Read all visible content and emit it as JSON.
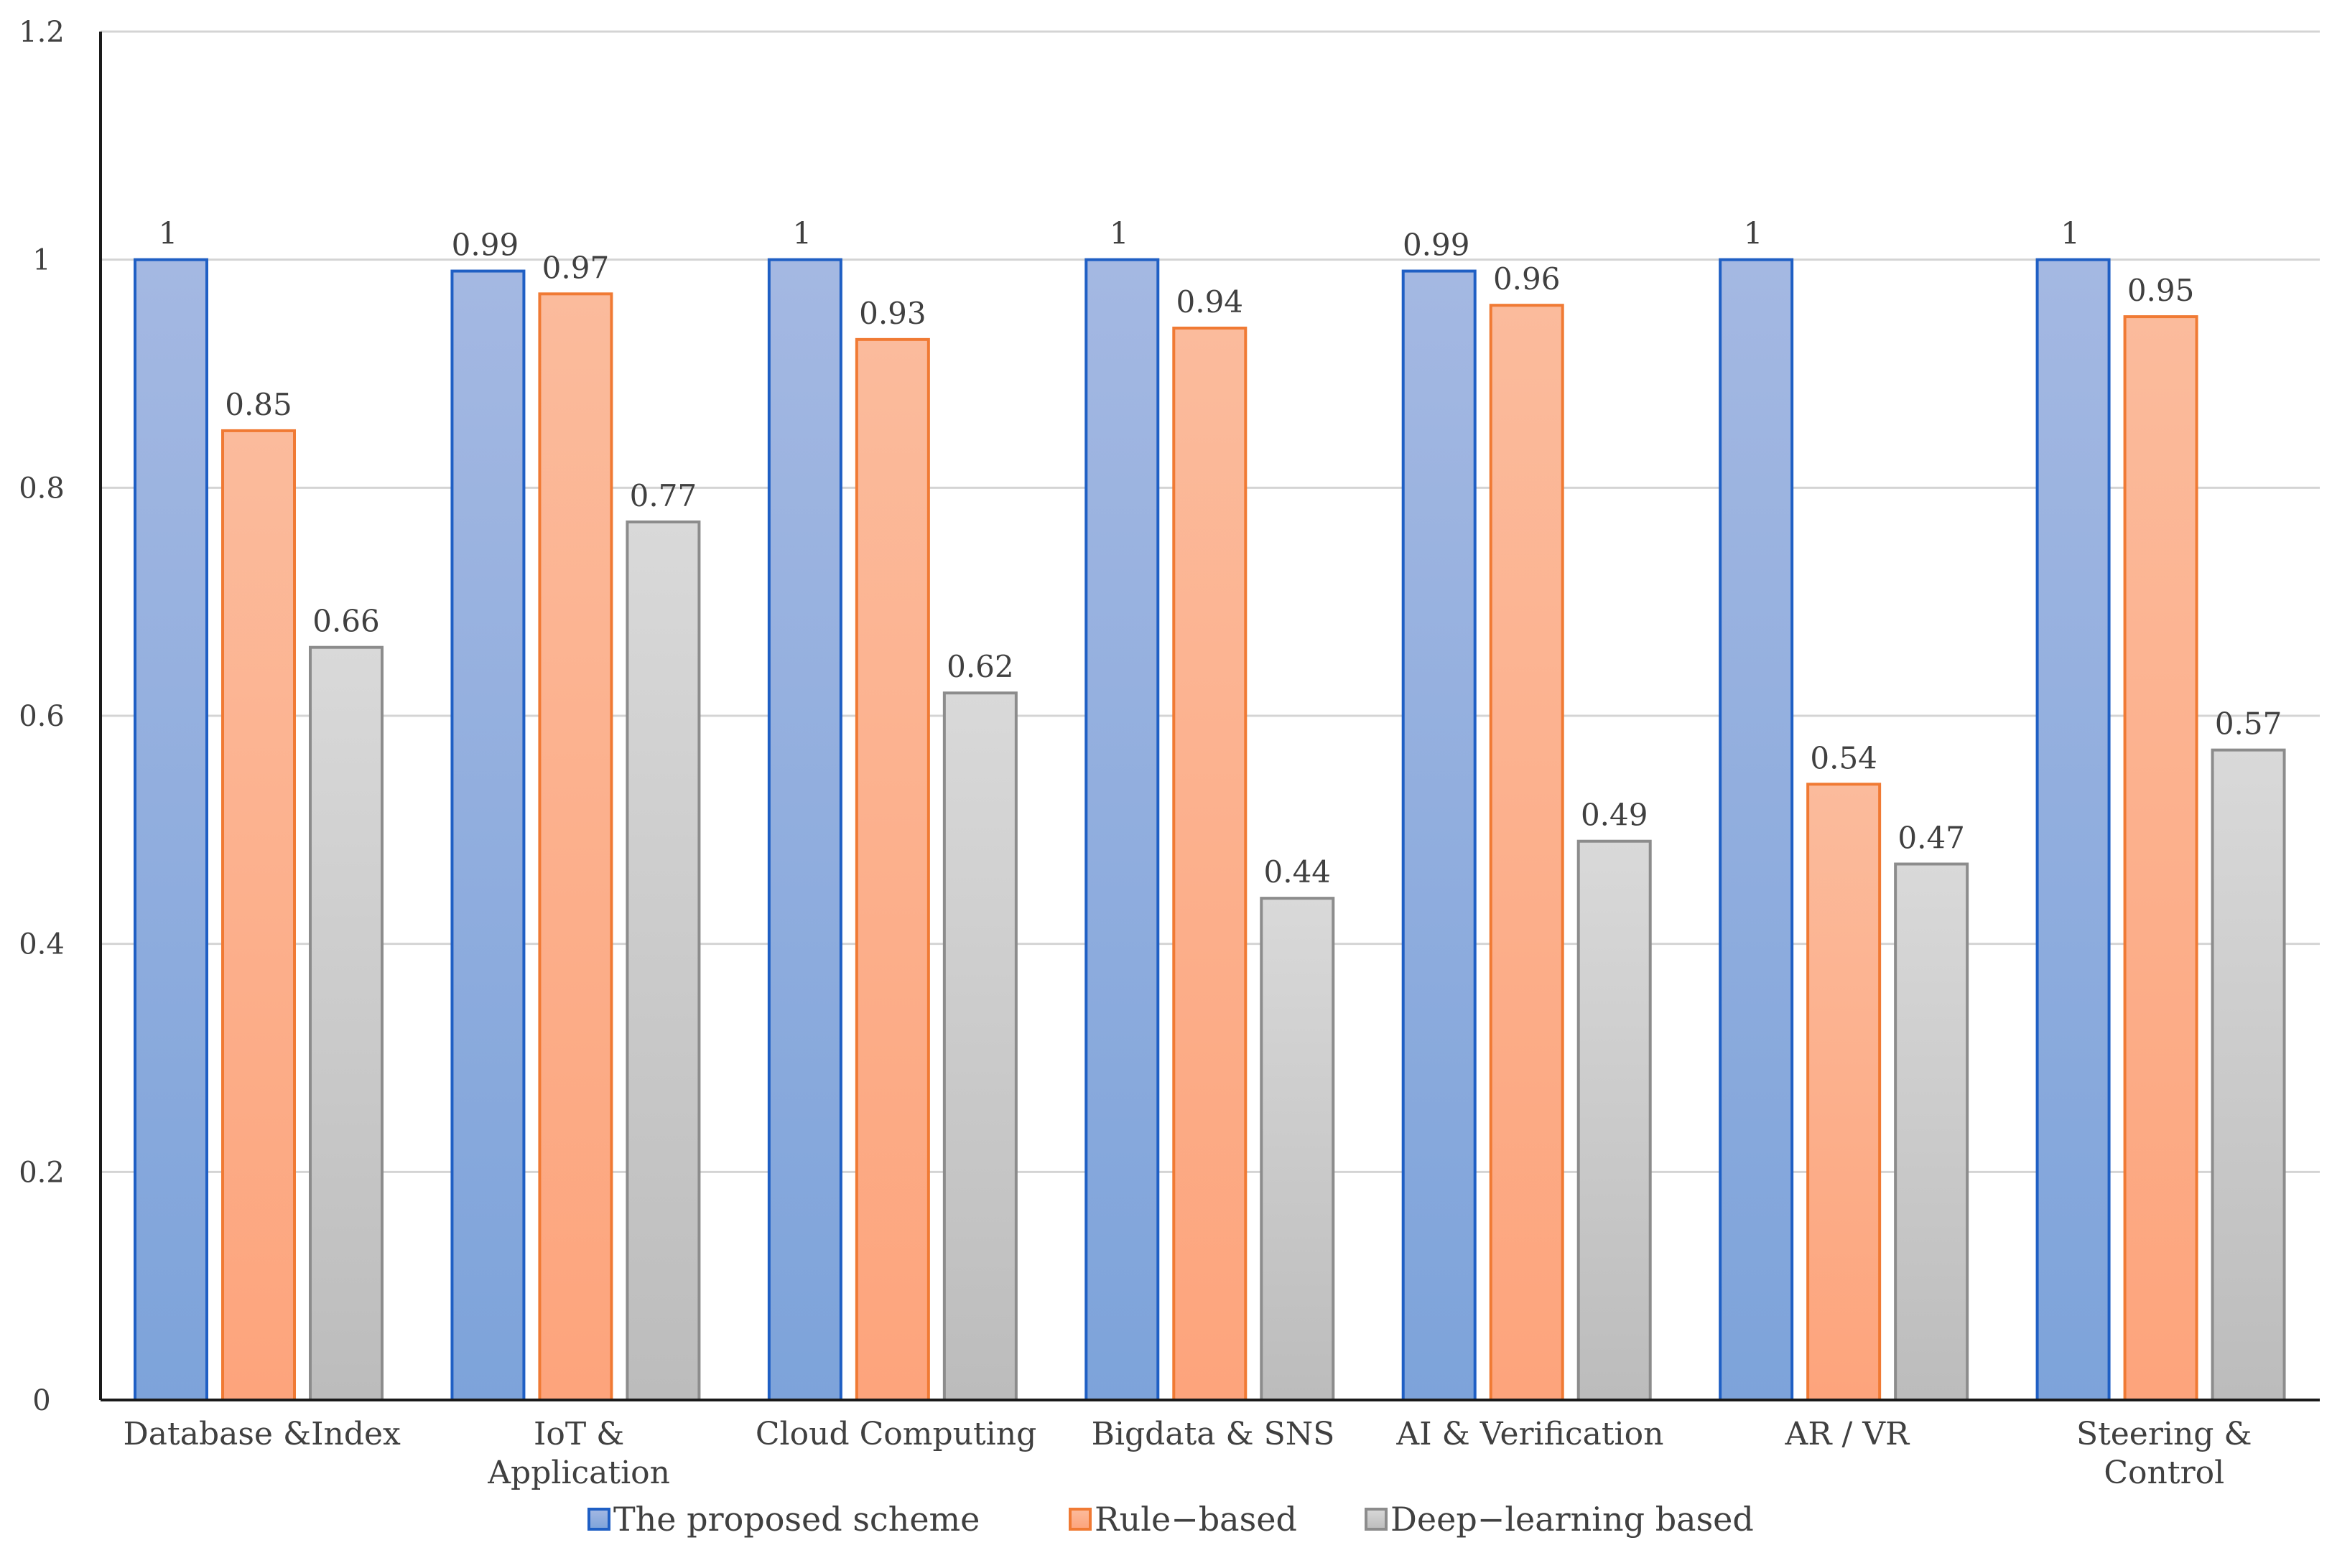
{
  "chart_data": {
    "type": "bar",
    "title": "",
    "xlabel": "",
    "ylabel": "",
    "ylim": [
      0,
      1.2
    ],
    "yticks": [
      "0",
      "0.2",
      "0.4",
      "0.6",
      "0.8",
      "1",
      "1.2"
    ],
    "grid": true,
    "legend_position": "bottom",
    "categories": [
      [
        "Database &Index"
      ],
      [
        "IoT &",
        "Application"
      ],
      [
        "Cloud Computing"
      ],
      [
        "Bigdata & SNS"
      ],
      [
        "AI & Verification"
      ],
      [
        "AR / VR"
      ],
      [
        "Steering &",
        "Control"
      ]
    ],
    "series": [
      {
        "name": "The proposed scheme",
        "values": [
          1,
          0.99,
          1,
          1,
          0.99,
          1,
          1
        ],
        "labels": [
          "1",
          "0.99",
          "1",
          "1",
          "0.99",
          "1",
          "1"
        ],
        "color_top": "#a4b8e2",
        "color_bottom": "#7da3da",
        "stroke": "#1f5fc4"
      },
      {
        "name": "Rule−based",
        "values": [
          0.85,
          0.97,
          0.93,
          0.94,
          0.96,
          0.54,
          0.95
        ],
        "labels": [
          "0.85",
          "0.97",
          "0.93",
          "0.94",
          "0.96",
          "0.54",
          "0.95"
        ],
        "color_top": "#fbbb9c",
        "color_bottom": "#fda47c",
        "stroke": "#f07a34"
      },
      {
        "name": "Deep−learning based",
        "values": [
          0.66,
          0.77,
          0.62,
          0.44,
          0.49,
          0.47,
          0.57
        ],
        "labels": [
          "0.66",
          "0.77",
          "0.62",
          "0.44",
          "0.49",
          "0.47",
          "0.57"
        ],
        "color_top": "#d9d9d9",
        "color_bottom": "#bcbcbc",
        "stroke": "#8c8c8c"
      }
    ]
  }
}
